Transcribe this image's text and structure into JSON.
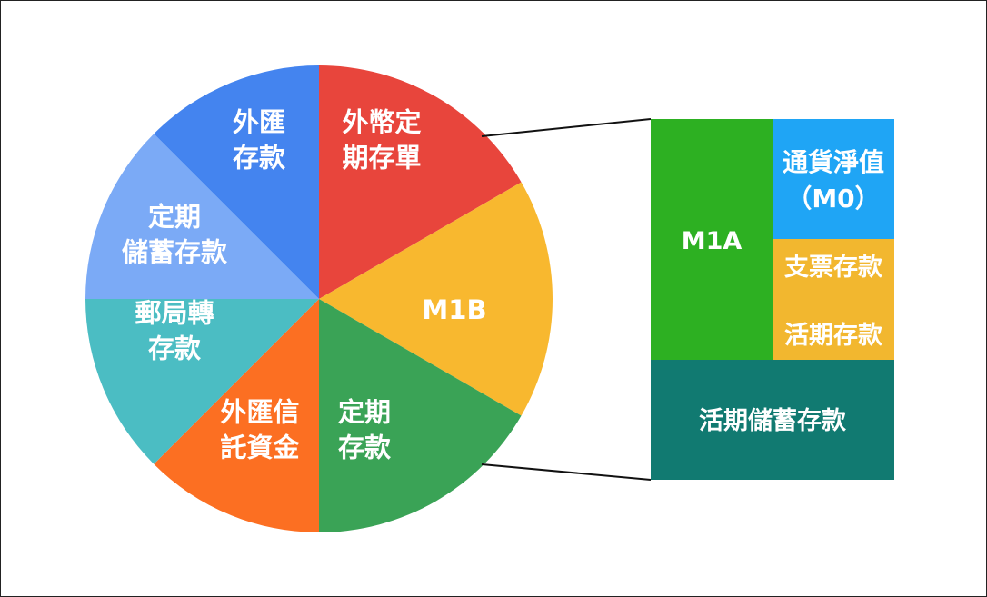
{
  "pie": {
    "slices": [
      {
        "id": "fx-cd",
        "lines": [
          "外幣定",
          "期存單"
        ],
        "color": "#e8453c"
      },
      {
        "id": "m1b",
        "lines": [
          "M1B"
        ],
        "color": "#f8b82f"
      },
      {
        "id": "time-deposit",
        "lines": [
          "定期",
          "存款"
        ],
        "color": "#3aa356"
      },
      {
        "id": "fx-trust",
        "lines": [
          "外匯信",
          "託資金"
        ],
        "color": "#fc6f22"
      },
      {
        "id": "postal",
        "lines": [
          "郵局轉",
          "存款"
        ],
        "color": "#4bbdc3"
      },
      {
        "id": "time-savings",
        "lines": [
          "定期",
          "儲蓄存款"
        ],
        "color": "#7baaf6"
      },
      {
        "id": "fx-deposit",
        "lines": [
          "外匯",
          "存款"
        ],
        "color": "#4484ef"
      }
    ]
  },
  "breakdown": {
    "m1a": {
      "label": "M1A",
      "color": "#2db022"
    },
    "currency": {
      "lines": [
        "通貨淨值",
        "（M0）"
      ],
      "color": "#1fa5f5"
    },
    "checking": {
      "label": "支票存款",
      "color": "#f2b72f"
    },
    "demand": {
      "label": "活期存款",
      "color": "#f2b72f"
    },
    "savings": {
      "label": "活期儲蓄存款",
      "color": "#117a71"
    }
  }
}
